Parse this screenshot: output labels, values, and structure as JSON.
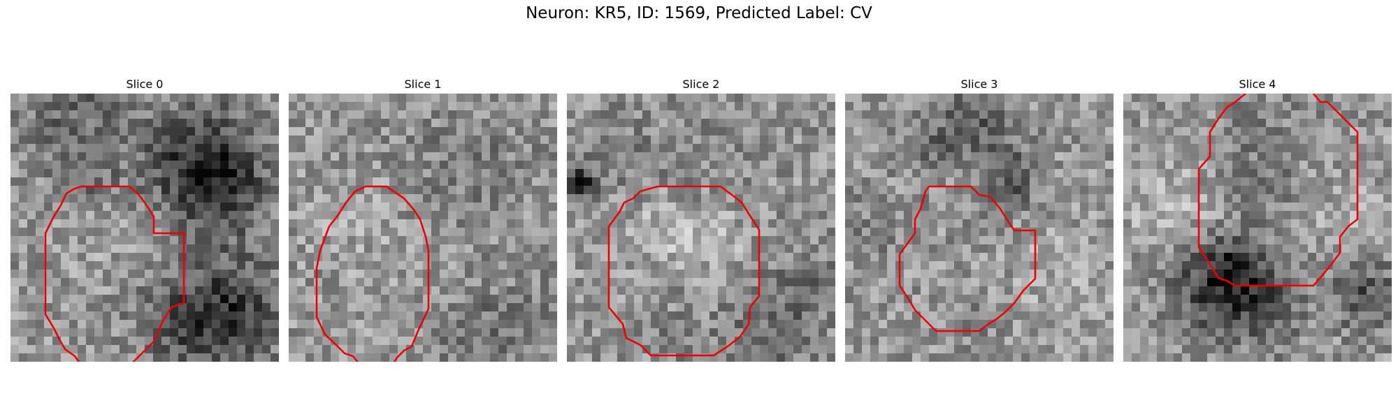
{
  "title": "Neuron: KR5, ID: 1569, Predicted Label: CV",
  "overlay_color": "#ee0000",
  "slices": [
    {
      "label": "Slice 0"
    },
    {
      "label": "Slice 1"
    },
    {
      "label": "Slice 2"
    },
    {
      "label": "Slice 3"
    },
    {
      "label": "Slice 4"
    }
  ]
}
